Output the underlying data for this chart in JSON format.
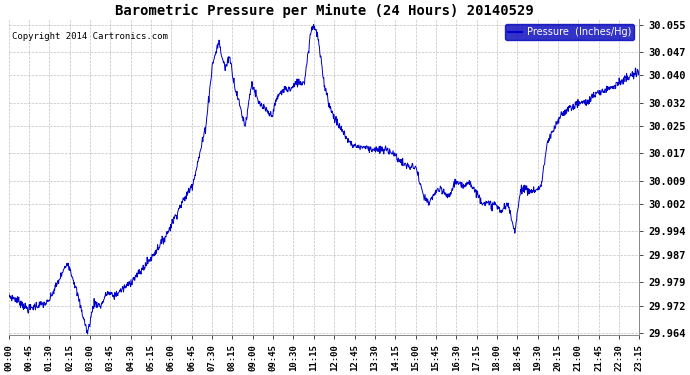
{
  "title": "Barometric Pressure per Minute (24 Hours) 20140529",
  "copyright": "Copyright 2014 Cartronics.com",
  "legend_label": "Pressure  (Inches/Hg)",
  "line_color": "#0000cc",
  "background_color": "#ffffff",
  "plot_bg_color": "#ffffff",
  "grid_color": "#bbbbbb",
  "ylim": [
    29.9635,
    30.0565
  ],
  "yticks": [
    29.964,
    29.972,
    29.979,
    29.987,
    29.994,
    30.002,
    30.009,
    30.017,
    30.025,
    30.032,
    30.04,
    30.047,
    30.055
  ],
  "xtick_labels": [
    "00:00",
    "00:45",
    "01:30",
    "02:15",
    "03:00",
    "03:45",
    "04:30",
    "05:15",
    "06:00",
    "06:45",
    "07:30",
    "08:15",
    "09:00",
    "09:45",
    "10:30",
    "11:15",
    "12:00",
    "12:45",
    "13:30",
    "14:15",
    "15:00",
    "15:45",
    "16:30",
    "17:15",
    "18:00",
    "18:45",
    "19:30",
    "20:15",
    "21:00",
    "21:45",
    "22:30",
    "23:15"
  ],
  "waypoints": [
    [
      0.0,
      29.975
    ],
    [
      0.3,
      29.974
    ],
    [
      0.6,
      29.972
    ],
    [
      0.75,
      29.971
    ],
    [
      1.0,
      29.972
    ],
    [
      1.5,
      29.973
    ],
    [
      2.0,
      29.981
    ],
    [
      2.25,
      29.985
    ],
    [
      2.5,
      29.979
    ],
    [
      3.0,
      29.964
    ],
    [
      3.25,
      29.973
    ],
    [
      3.5,
      29.972
    ],
    [
      3.75,
      29.976
    ],
    [
      4.0,
      29.975
    ],
    [
      4.5,
      29.978
    ],
    [
      5.0,
      29.982
    ],
    [
      5.5,
      29.987
    ],
    [
      6.0,
      29.993
    ],
    [
      6.5,
      30.001
    ],
    [
      7.0,
      30.008
    ],
    [
      7.25,
      30.016
    ],
    [
      7.5,
      30.025
    ],
    [
      7.75,
      30.043
    ],
    [
      8.0,
      30.05
    ],
    [
      8.1,
      30.046
    ],
    [
      8.25,
      30.042
    ],
    [
      8.4,
      30.046
    ],
    [
      8.6,
      30.037
    ],
    [
      9.0,
      30.025
    ],
    [
      9.25,
      30.038
    ],
    [
      9.5,
      30.032
    ],
    [
      9.75,
      30.03
    ],
    [
      10.0,
      30.028
    ],
    [
      10.25,
      30.034
    ],
    [
      10.5,
      30.036
    ],
    [
      10.75,
      30.036
    ],
    [
      11.0,
      30.038
    ],
    [
      11.25,
      30.038
    ],
    [
      11.5,
      30.053
    ],
    [
      11.6,
      30.055
    ],
    [
      11.75,
      30.052
    ],
    [
      12.0,
      30.038
    ],
    [
      12.25,
      30.03
    ],
    [
      12.5,
      30.026
    ],
    [
      13.0,
      30.02
    ],
    [
      13.25,
      30.019
    ],
    [
      13.5,
      30.019
    ],
    [
      14.0,
      30.018
    ],
    [
      14.5,
      30.018
    ],
    [
      15.0,
      30.014
    ],
    [
      15.25,
      30.013
    ],
    [
      15.5,
      30.013
    ],
    [
      15.75,
      30.005
    ],
    [
      16.0,
      30.002
    ],
    [
      16.25,
      30.006
    ],
    [
      16.5,
      30.006
    ],
    [
      16.75,
      30.004
    ],
    [
      17.0,
      30.009
    ],
    [
      17.25,
      30.007
    ],
    [
      17.5,
      30.009
    ],
    [
      17.75,
      30.006
    ],
    [
      18.0,
      30.003
    ],
    [
      18.25,
      30.002
    ],
    [
      18.5,
      30.002
    ],
    [
      18.75,
      30.0
    ],
    [
      19.0,
      30.002
    ],
    [
      19.25,
      29.994
    ],
    [
      19.5,
      30.007
    ],
    [
      19.75,
      30.006
    ],
    [
      20.0,
      30.006
    ],
    [
      20.25,
      30.007
    ],
    [
      20.5,
      30.02
    ],
    [
      21.0,
      30.028
    ],
    [
      21.25,
      30.03
    ],
    [
      21.5,
      30.031
    ],
    [
      21.75,
      30.032
    ],
    [
      22.0,
      30.032
    ],
    [
      22.25,
      30.034
    ],
    [
      22.5,
      30.035
    ],
    [
      22.75,
      30.036
    ],
    [
      23.0,
      30.037
    ],
    [
      23.25,
      30.038
    ],
    [
      23.5,
      30.039
    ],
    [
      23.75,
      30.04
    ],
    [
      24.0,
      30.041
    ]
  ]
}
